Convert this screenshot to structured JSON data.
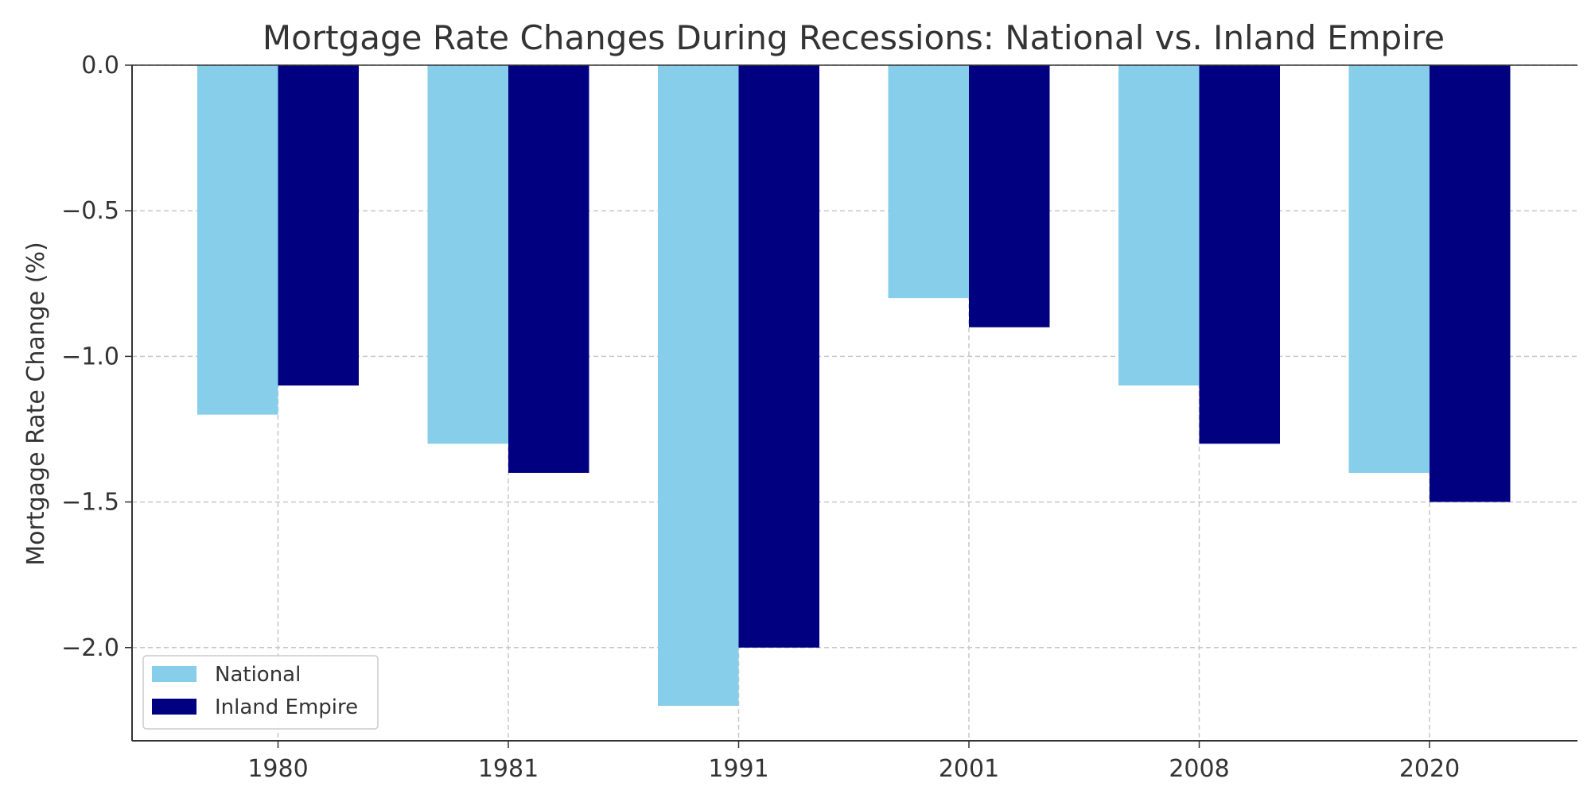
{
  "chart_data": {
    "type": "bar",
    "title": "Mortgage Rate Changes During Recessions: National vs. Inland Empire",
    "xlabel": "",
    "ylabel": "Mortgage Rate Change (%)",
    "categories": [
      "1980",
      "1981",
      "1991",
      "2001",
      "2008",
      "2020"
    ],
    "series": [
      {
        "name": "National",
        "color": "#87CEEB",
        "values": [
          -1.2,
          -1.3,
          -2.2,
          -0.8,
          -1.1,
          -1.4
        ]
      },
      {
        "name": "Inland Empire",
        "color": "#000080",
        "values": [
          -1.1,
          -1.4,
          -2.0,
          -0.9,
          -1.3,
          -1.5
        ]
      }
    ],
    "ylim": [
      -2.32,
      0.0
    ],
    "yticks": [
      0.0,
      -0.5,
      -1.0,
      -1.5,
      -2.0
    ],
    "ytick_labels": [
      "0.0",
      "−0.5",
      "−1.0",
      "−1.5",
      "−2.0"
    ],
    "grid": true,
    "legend_position": "bottom-left"
  }
}
